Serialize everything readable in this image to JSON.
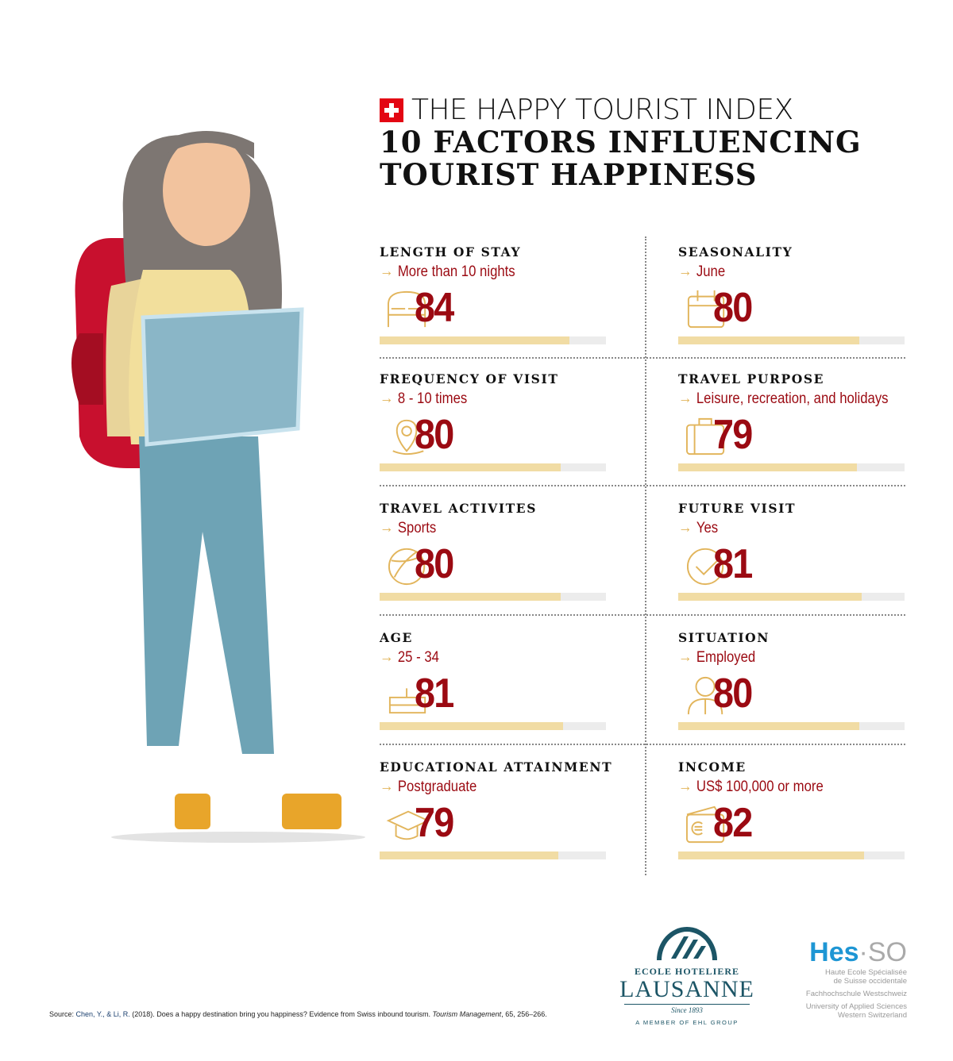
{
  "header": {
    "line1": "THE HAPPY TOURIST INDEX",
    "line2": "10 FACTORS INFLUENCING",
    "line3": "TOURIST HAPPINESS",
    "flag_icon": "swiss-flag-icon"
  },
  "colors": {
    "accent_red": "#9b0a12",
    "arrow_gold": "#e2b55c",
    "bar_fill": "#f1dca4",
    "bar_track": "#ececec"
  },
  "factors": [
    {
      "label": "LENGTH OF STAY",
      "value_label": "More than 10 nights",
      "score": "84",
      "icon": "bed-icon"
    },
    {
      "label": "SEASONALITY",
      "value_label": "June",
      "score": "80",
      "icon": "calendar-icon"
    },
    {
      "label": "FREQUENCY OF VISIT",
      "value_label": "8 - 10 times",
      "score": "80",
      "icon": "map-pin-icon"
    },
    {
      "label": "TRAVEL PURPOSE",
      "value_label": "Leisure, recreation, and holidays",
      "score": "79",
      "icon": "suitcase-icon"
    },
    {
      "label": "TRAVEL ACTIVITES",
      "value_label": "Sports",
      "score": "80",
      "icon": "ball-icon"
    },
    {
      "label": "FUTURE VISIT",
      "value_label": "Yes",
      "score": "81",
      "icon": "check-circle-icon"
    },
    {
      "label": "AGE",
      "value_label": "25 - 34",
      "score": "81",
      "icon": "cake-icon"
    },
    {
      "label": "SITUATION",
      "value_label": "Employed",
      "score": "80",
      "icon": "person-tie-icon"
    },
    {
      "label": "EDUCATIONAL ATTAINMENT",
      "value_label": "Postgraduate",
      "score": "79",
      "icon": "graduation-cap-icon"
    },
    {
      "label": "INCOME",
      "value_label": "US$ 100,000 or more",
      "score": "82",
      "icon": "wallet-euro-icon"
    }
  ],
  "footer": {
    "source_prefix": "Source: ",
    "source_authors": "Chen, Y., & Li, R.",
    "source_rest": " (2018). Does a happy destination bring you happiness? Evidence from Swiss inbound tourism. ",
    "source_journal": "Tourism Management",
    "source_tail": ", 65, 256–266.",
    "ehl": {
      "line1": "ECOLE HOTELIERE",
      "line2": "LAUSANNE",
      "since": "Since 1893",
      "member": "A MEMBER OF EHL GROUP"
    },
    "hes": {
      "logo_a": "Hes",
      "logo_b": "·SO",
      "l1": "Haute Ecole Spécialisée",
      "l2": "de Suisse occidentale",
      "l3": "Fachhochschule Westschweiz",
      "l4": "University of Applied Sciences",
      "l5": "Western Switzerland"
    }
  }
}
